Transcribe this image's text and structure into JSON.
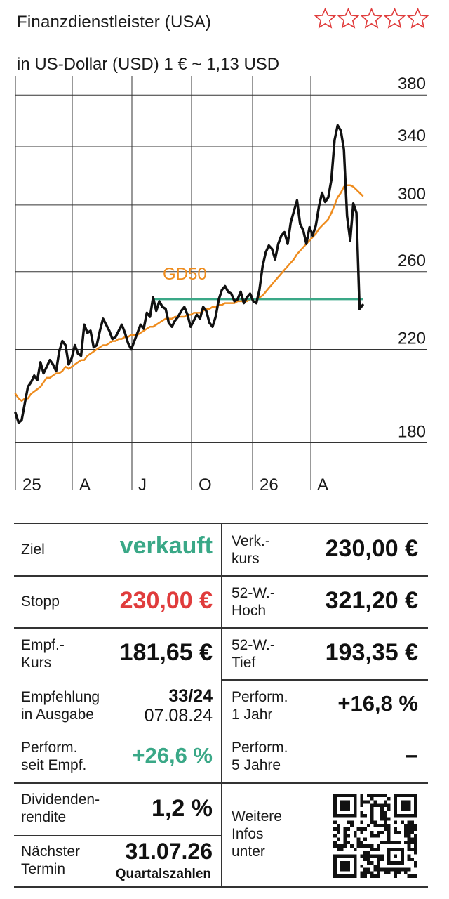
{
  "header": {
    "title": "Finanzdienstleister (USA)",
    "currency_note": "in US-Dollar (USD) 1 € ~ 1,13 USD",
    "rating_stars": 5,
    "rating_filled": 0,
    "star_color": "#e03c3c"
  },
  "chart_data": {
    "type": "line",
    "y_ticks": [
      "380",
      "340",
      "300",
      "260",
      "220",
      "180"
    ],
    "y_tick_values": [
      380,
      340,
      300,
      260,
      220,
      180
    ],
    "ylim": [
      174,
      390
    ],
    "y_scale": "log",
    "x_ticks": [
      "25",
      "A",
      "J",
      "O",
      "26",
      "A"
    ],
    "annotation": "GD50",
    "level_line_value": 245,
    "colors": {
      "price": "#111111",
      "gd50": "#ee8c1e",
      "level": "#3aa887",
      "grid": "#333333"
    },
    "series": [
      {
        "key": "price",
        "values": [
          192,
          188,
          189,
          196,
          203,
          205,
          208,
          206,
          214,
          209,
          212,
          215,
          213,
          210,
          219,
          224,
          222,
          213,
          216,
          222,
          218,
          217,
          232,
          228,
          229,
          221,
          222,
          229,
          235,
          232,
          229,
          225,
          226,
          229,
          232,
          228,
          223,
          220,
          224,
          228,
          232,
          230,
          238,
          236,
          246,
          239,
          244,
          241,
          240,
          233,
          231,
          234,
          236,
          239,
          241,
          237,
          231,
          234,
          237,
          235,
          241,
          239,
          233,
          231,
          236,
          245,
          250,
          252,
          249,
          248,
          244,
          245,
          249,
          243,
          246,
          248,
          244,
          243,
          250,
          263,
          271,
          275,
          273,
          267,
          276,
          281,
          283,
          276,
          289,
          296,
          303,
          288,
          284,
          276,
          286,
          281,
          287,
          299,
          308,
          302,
          305,
          317,
          345,
          356,
          352,
          338,
          293,
          278,
          301,
          295,
          240,
          242
        ]
      },
      {
        "key": "gd50",
        "values": [
          200,
          198,
          197,
          198,
          198,
          200,
          201,
          202,
          203,
          205,
          207,
          207,
          208,
          209,
          209,
          210,
          212,
          211,
          212,
          213,
          214,
          215,
          215,
          217,
          218,
          219,
          220,
          221,
          222,
          222,
          223,
          224,
          224,
          225,
          225,
          226,
          226,
          227,
          227,
          227,
          228,
          229,
          230,
          231,
          231,
          232,
          233,
          234,
          235,
          235,
          235,
          236,
          236,
          236,
          236,
          237,
          237,
          238,
          238,
          238,
          239,
          240,
          240,
          241,
          241,
          242,
          242,
          243,
          243,
          243,
          243,
          244,
          244,
          244,
          244,
          245,
          245,
          245,
          246,
          247,
          249,
          251,
          253,
          255,
          257,
          259,
          261,
          263,
          265,
          267,
          270,
          272,
          274,
          276,
          278,
          280,
          282,
          285,
          287,
          289,
          291,
          295,
          300,
          305,
          308,
          312,
          313,
          313,
          312,
          310,
          308,
          306
        ]
      }
    ]
  },
  "table": {
    "left": [
      {
        "label": "Ziel",
        "value": "verkauft"
      },
      {
        "label": "Stopp",
        "value": "230,00 €"
      },
      {
        "label": "Empf.-\nKurs",
        "value": "181,65 €"
      },
      {
        "label": "Empfehlung\nin Ausgabe",
        "value": "33/24",
        "value2": "07.08.24"
      },
      {
        "label": "Perform.\nseit Empf.",
        "value": "+26,6 %"
      },
      {
        "label": "Dividenden-\nrendite",
        "value": "1,2 %"
      },
      {
        "label": "Nächster\nTermin",
        "value": "31.07.26",
        "value2": "Quartalszahlen"
      }
    ],
    "right": [
      {
        "label": "Verk.-\nkurs",
        "value": "230,00 €"
      },
      {
        "label": "52-W.-\nHoch",
        "value": "321,20 €"
      },
      {
        "label": "52-W.-\nTief",
        "value": "193,35 €"
      },
      {
        "label": "Perform.\n1 Jahr",
        "value": "+16,8 %"
      },
      {
        "label": "Perform.\n5 Jahre",
        "value": "–"
      },
      {
        "label": "Weitere\nInfos\nunter",
        "value": ""
      }
    ],
    "qr_icon": "qr-code-icon"
  }
}
